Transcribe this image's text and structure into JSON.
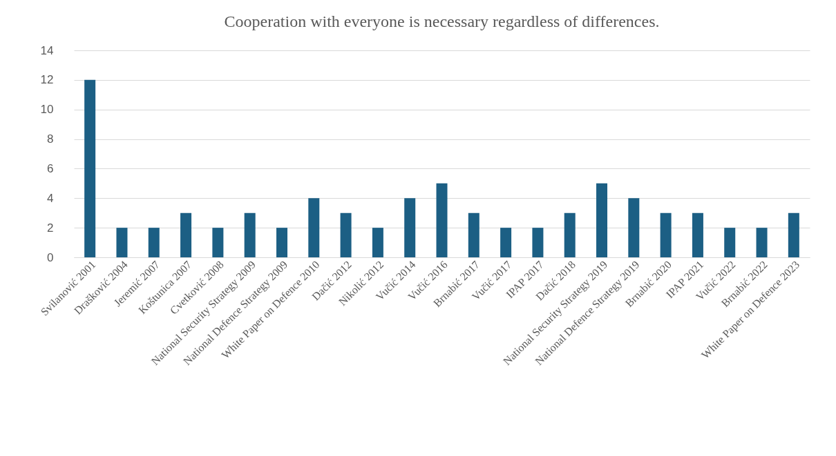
{
  "chart_data": {
    "type": "bar",
    "title": "Cooperation with everyone is necessary regardless of differences.",
    "categories": [
      "Svilanović 2001",
      "Drašković 2004",
      "Jeremić 2007",
      "Koštunica 2007",
      "Cvetković 2008",
      "National Security Strategy 2009",
      "National Defence Strategy 2009",
      "White Paper on Defence 2010",
      "Dačić 2012",
      "Nikolić 2012",
      "Vučić 2014",
      "Vučić 2016",
      "Brnabić 2017",
      "Vučić 2017",
      "IPAP 2017",
      "Dačić 2018",
      "National Security Strategy 2019",
      "National Defence Strategy 2019",
      "Brnabić 2020",
      "IPAP 2021",
      "Vučić 2022",
      "Brnabić 2022",
      "White Paper on Defence 2023"
    ],
    "values": [
      12,
      2,
      2,
      3,
      2,
      3,
      2,
      4,
      3,
      2,
      4,
      5,
      3,
      2,
      2,
      3,
      5,
      4,
      3,
      3,
      2,
      2,
      3
    ],
    "color": "#1c5f84",
    "ylim": [
      0,
      14
    ],
    "yticks": [
      0,
      2,
      4,
      6,
      8,
      10,
      12,
      14
    ],
    "grid": "y"
  }
}
